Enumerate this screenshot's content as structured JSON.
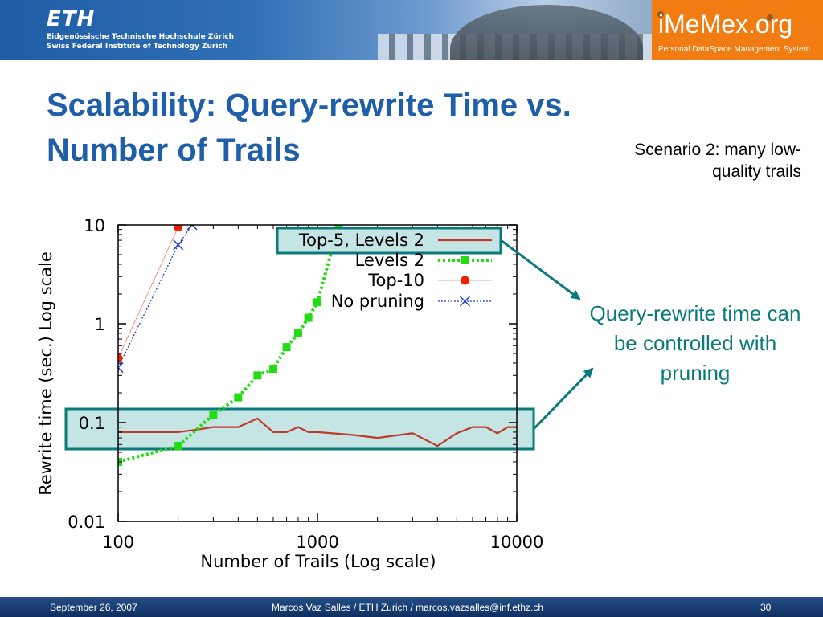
{
  "header": {
    "eth_logo": "ETH",
    "eth_line1": "Eidgenössische Technische Hochschule Zürich",
    "eth_line2": "Swiss Federal Institute of Technology Zurich",
    "imemex_title": "iMeMex.org",
    "imemex_sub": "Personal DataSpace Management System",
    "imemex_color": "#f07c12"
  },
  "slide": {
    "title": "Scalability: Query-rewrite Time vs. Number of Trails",
    "scenario": "Scenario 2: many low-quality trails",
    "callout": "Query-rewrite time can be controlled with pruning",
    "title_color": "#1f5ea8",
    "callout_color": "#0b7a7a"
  },
  "chart_data": {
    "type": "line",
    "xlabel": "Number of Trails (Log scale)",
    "ylabel": "Rewrite time (sec.) Log scale",
    "xscale": "log",
    "yscale": "log",
    "xlim": [
      100,
      10000
    ],
    "ylim": [
      0.01,
      10
    ],
    "x_ticks": [
      100,
      1000,
      10000
    ],
    "x_tick_labels": [
      "100",
      "1000",
      "10000"
    ],
    "y_ticks": [
      0.01,
      0.1,
      1,
      10
    ],
    "y_tick_labels": [
      "0.01",
      "0.1",
      "1",
      "10"
    ],
    "legend_position": "top-right",
    "series": [
      {
        "name": "Top-5, Levels 2",
        "color": "#c0392b",
        "style": "solid",
        "marker": "none",
        "x": [
          100,
          150,
          200,
          250,
          300,
          400,
          500,
          600,
          700,
          800,
          900,
          1000,
          1500,
          2000,
          3000,
          4000,
          5000,
          6000,
          7000,
          8000,
          9000,
          10000
        ],
        "y": [
          0.08,
          0.08,
          0.08,
          0.085,
          0.09,
          0.09,
          0.11,
          0.08,
          0.08,
          0.09,
          0.08,
          0.08,
          0.075,
          0.07,
          0.078,
          0.058,
          0.078,
          0.09,
          0.09,
          0.078,
          0.09,
          0.09
        ]
      },
      {
        "name": "Levels 2",
        "color": "#22dd11",
        "style": "dotted",
        "marker": "square",
        "x": [
          100,
          200,
          300,
          400,
          500,
          600,
          700,
          800,
          900,
          1000,
          1280
        ],
        "y": [
          0.04,
          0.058,
          0.12,
          0.18,
          0.3,
          0.35,
          0.58,
          0.8,
          1.15,
          1.65,
          10
        ]
      },
      {
        "name": "Top-10",
        "color": "#ee2200",
        "style": "solid",
        "marker": "circle",
        "x": [
          100,
          200
        ],
        "y": [
          0.45,
          9.5
        ]
      },
      {
        "name": "No pruning",
        "color": "#1f3fcc",
        "style": "dotted",
        "marker": "cross",
        "x": [
          100,
          200,
          235
        ],
        "y": [
          0.36,
          6.3,
          10
        ]
      }
    ],
    "highlight_color": "#0b7a7a"
  },
  "footer": {
    "date": "September 26, 2007",
    "author": "Marcos Vaz Salles / ETH Zurich / marcos.vazsalles@inf.ethz.ch",
    "page": "30"
  }
}
